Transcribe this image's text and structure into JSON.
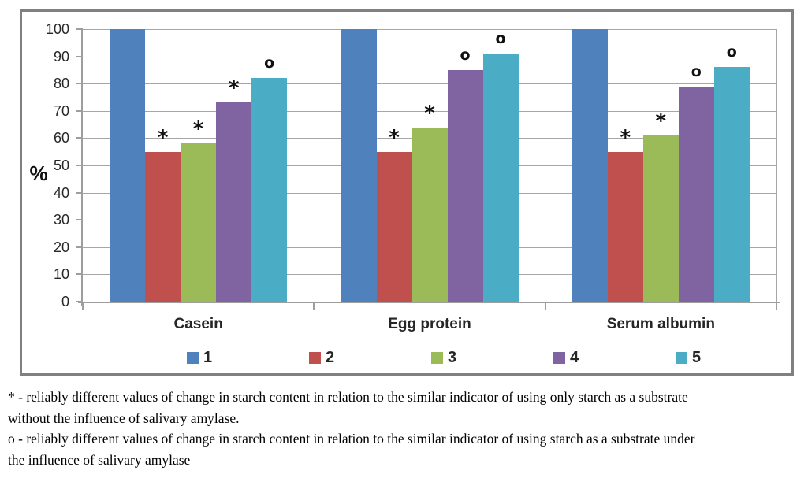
{
  "chart_data": {
    "type": "bar",
    "title": "",
    "xlabel": "",
    "ylabel": "%",
    "ylim": [
      0,
      100
    ],
    "ytick_step": 10,
    "grid": true,
    "legend_position": "bottom",
    "categories": [
      "Casein",
      "Egg protein",
      "Serum albumin"
    ],
    "series": [
      {
        "name": "1",
        "color": "#4F81BD",
        "values": [
          100,
          100,
          100
        ],
        "markers": [
          "",
          "",
          ""
        ]
      },
      {
        "name": "2",
        "color": "#C0504D",
        "values": [
          55,
          55,
          55
        ],
        "markers": [
          "*",
          "*",
          "*"
        ]
      },
      {
        "name": "3",
        "color": "#9BBB59",
        "values": [
          58,
          64,
          61
        ],
        "markers": [
          "*",
          "*",
          "*"
        ]
      },
      {
        "name": "4",
        "color": "#8064A2",
        "values": [
          73,
          85,
          79
        ],
        "markers": [
          "*",
          "o",
          "o"
        ]
      },
      {
        "name": "5",
        "color": "#4BACC6",
        "values": [
          82,
          91,
          86
        ],
        "markers": [
          "o",
          "o",
          "o"
        ]
      }
    ]
  },
  "footnote": {
    "lines": [
      "* - reliably different values of change in starch content in relation to the similar indicator of using only starch as a substrate",
      "without the influence of salivary amylase.",
      "o - reliably different values of change in starch content in relation to the similar indicator of using starch as a substrate under",
      "the influence of salivary amylase"
    ]
  },
  "colors": {
    "frame_border": "#808080",
    "axis": "#9e9e9e",
    "gridline": "#a6a6a6",
    "marker_text": "#111111"
  }
}
